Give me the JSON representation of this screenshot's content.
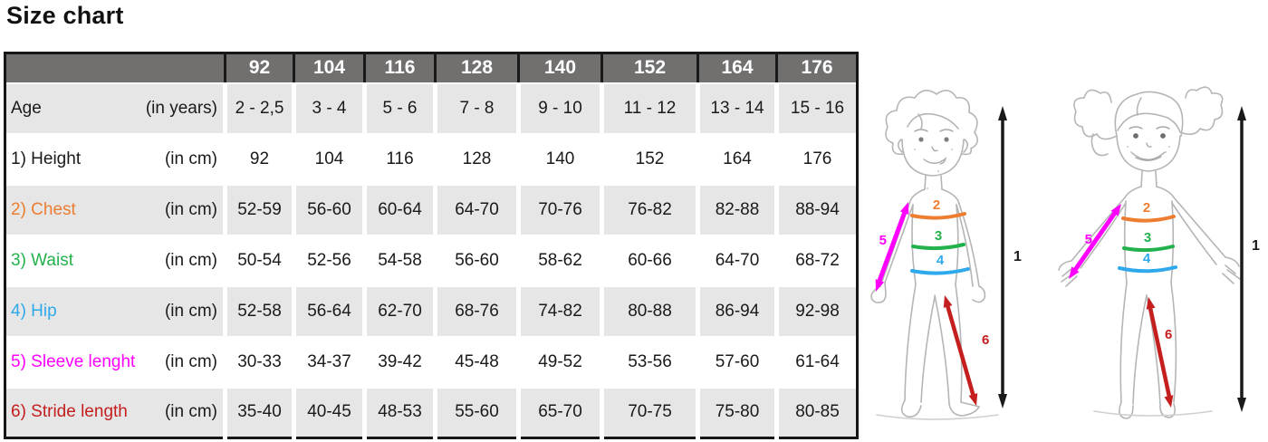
{
  "page": {
    "title": "Size chart"
  },
  "chart_data": {
    "type": "table",
    "title": "Size chart",
    "columns": [
      "92",
      "104",
      "116",
      "128",
      "140",
      "152",
      "164",
      "176"
    ],
    "rows": [
      {
        "label": "Age",
        "unit": "(in years)",
        "color": "#1a1a1a",
        "values": [
          "2 - 2,5",
          "3 - 4",
          "5 - 6",
          "7 - 8",
          "9 - 10",
          "11 - 12",
          "13 - 14",
          "15 - 16"
        ]
      },
      {
        "label": "1) Height",
        "unit": "(in cm)",
        "color": "#1a1a1a",
        "values": [
          "92",
          "104",
          "116",
          "128",
          "140",
          "152",
          "164",
          "176"
        ]
      },
      {
        "label": "2) Chest",
        "unit": "(in cm)",
        "color": "#ED7D31",
        "values": [
          "52-59",
          "56-60",
          "60-64",
          "64-70",
          "70-76",
          "76-82",
          "82-88",
          "88-94"
        ]
      },
      {
        "label": "3) Waist",
        "unit": "(in cm)",
        "color": "#22B14C",
        "values": [
          "50-54",
          "52-56",
          "54-58",
          "56-60",
          "58-62",
          "60-66",
          "64-70",
          "68-72"
        ]
      },
      {
        "label": "4) Hip",
        "unit": "(in cm)",
        "color": "#2FA9EC",
        "values": [
          "52-58",
          "56-64",
          "62-70",
          "68-76",
          "74-82",
          "80-88",
          "86-94",
          "92-98"
        ]
      },
      {
        "label": "5) Sleeve lenght",
        "unit": "(in cm)",
        "color": "#FF00FF",
        "values": [
          "30-33",
          "34-37",
          "39-42",
          "45-48",
          "49-52",
          "53-56",
          "57-60",
          "61-64"
        ]
      },
      {
        "label": "6) Stride length",
        "unit": "(in cm)",
        "color": "#C41E1E",
        "values": [
          "35-40",
          "40-45",
          "48-53",
          "55-60",
          "65-70",
          "70-75",
          "75-80",
          "80-85"
        ]
      }
    ],
    "layout": {
      "header_background": "#726F6F",
      "alternate_row_background": "#e6e6e6",
      "grid": "white gutters between value columns"
    }
  },
  "figures": {
    "markers": {
      "height": "1",
      "chest": "2",
      "waist": "3",
      "hip": "4",
      "sleeve": "5",
      "stride": "6"
    },
    "colors": {
      "height": "#1a1a1a",
      "chest": "#ED7D31",
      "waist": "#22B14C",
      "hip": "#2FA9EC",
      "sleeve": "#FF00FF",
      "stride": "#C41E1E",
      "sketch": "#b5b5b5"
    }
  }
}
